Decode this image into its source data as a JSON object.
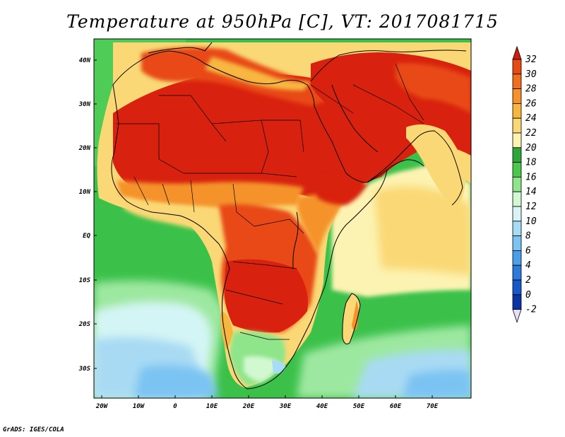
{
  "title": "Temperature at 950hPa [C], VT: 2017081715",
  "footer": "GrADS: IGES/COLA",
  "map": {
    "lon_range": [
      -22,
      81
    ],
    "lat_range": [
      -37,
      45
    ],
    "lat_labels": [
      "40N",
      "30N",
      "20N",
      "10N",
      "EQ",
      "10S",
      "20S",
      "30S"
    ],
    "lon_labels": [
      "20W",
      "10W",
      "0",
      "10E",
      "20E",
      "30E",
      "40E",
      "50E",
      "60E",
      "70E"
    ]
  },
  "colorbar": {
    "labels": [
      "32",
      "30",
      "28",
      "26",
      "24",
      "22",
      "20",
      "18",
      "16",
      "14",
      "12",
      "10",
      "8",
      "6",
      "4",
      "2",
      "0",
      "-2"
    ],
    "colors": [
      "#d01d10",
      "#e84a14",
      "#f06e1e",
      "#f5932a",
      "#f7b73f",
      "#fad875",
      "#fcf3b2",
      "#2ea63a",
      "#4dc64c",
      "#8fe58a",
      "#d2f8d2",
      "#d9f2f6",
      "#a6ddf5",
      "#7ac3f2",
      "#4a9fe8",
      "#2c7bda",
      "#1757c7",
      "#0b34a5",
      "#101d72"
    ]
  },
  "colors": {
    "ocean_tropical": "#3bc14a",
    "ocean_south": "#9de8a0",
    "ocean_cold": "#a8daf3",
    "land_hot": "#d8220f"
  }
}
